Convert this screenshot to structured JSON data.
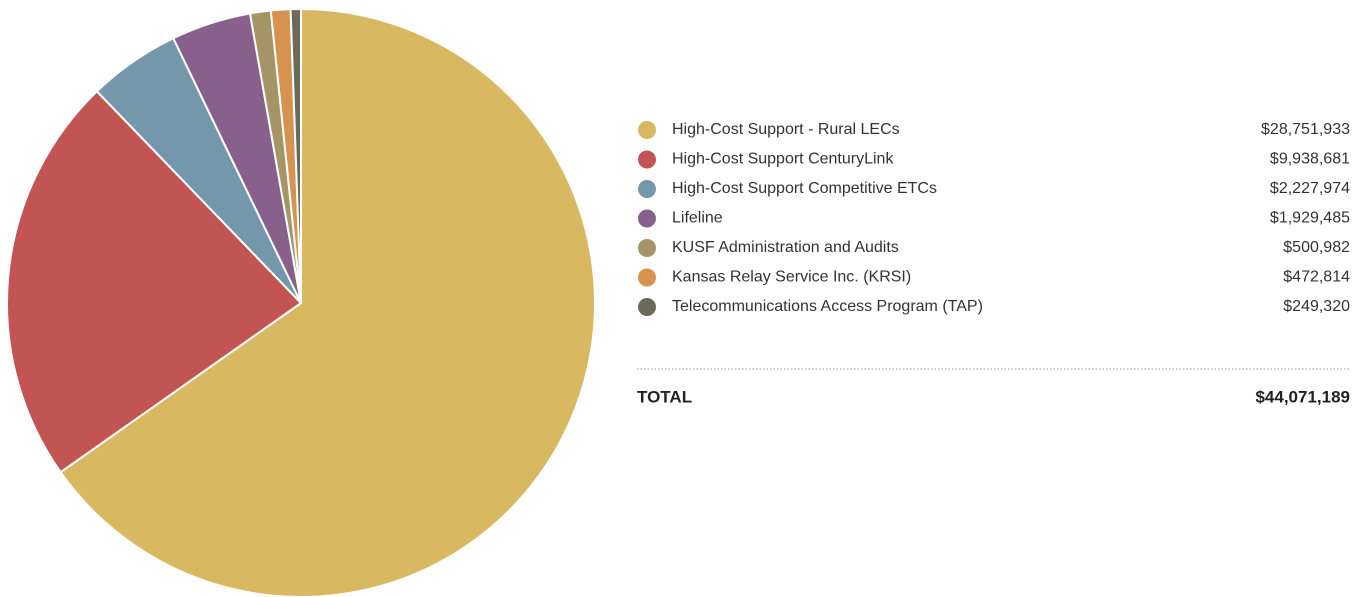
{
  "chart_data": {
    "type": "pie",
    "categories": [
      "High-Cost Support - Rural LECs",
      "High-Cost Support CenturyLink",
      "High-Cost Support Competitive ETCs",
      "Lifeline",
      "KUSF Administration and Audits",
      "Kansas Relay Service Inc. (KRSI)",
      "Telecommunications Access Program (TAP)"
    ],
    "values": [
      28751933,
      9938681,
      2227974,
      1929485,
      500982,
      472814,
      249320
    ],
    "value_labels": [
      "$28,751,933",
      "$9,938,681",
      "$2,227,974",
      "$1,929,485",
      "$500,982",
      "$472,814",
      "$249,320"
    ],
    "colors": [
      "#d8b962",
      "#c25554",
      "#7497ab",
      "#87618b",
      "#a59566",
      "#d6924f",
      "#6b6a59"
    ],
    "total": {
      "label": "TOTAL",
      "value": 44071189,
      "value_label": "$44,071,189"
    }
  }
}
